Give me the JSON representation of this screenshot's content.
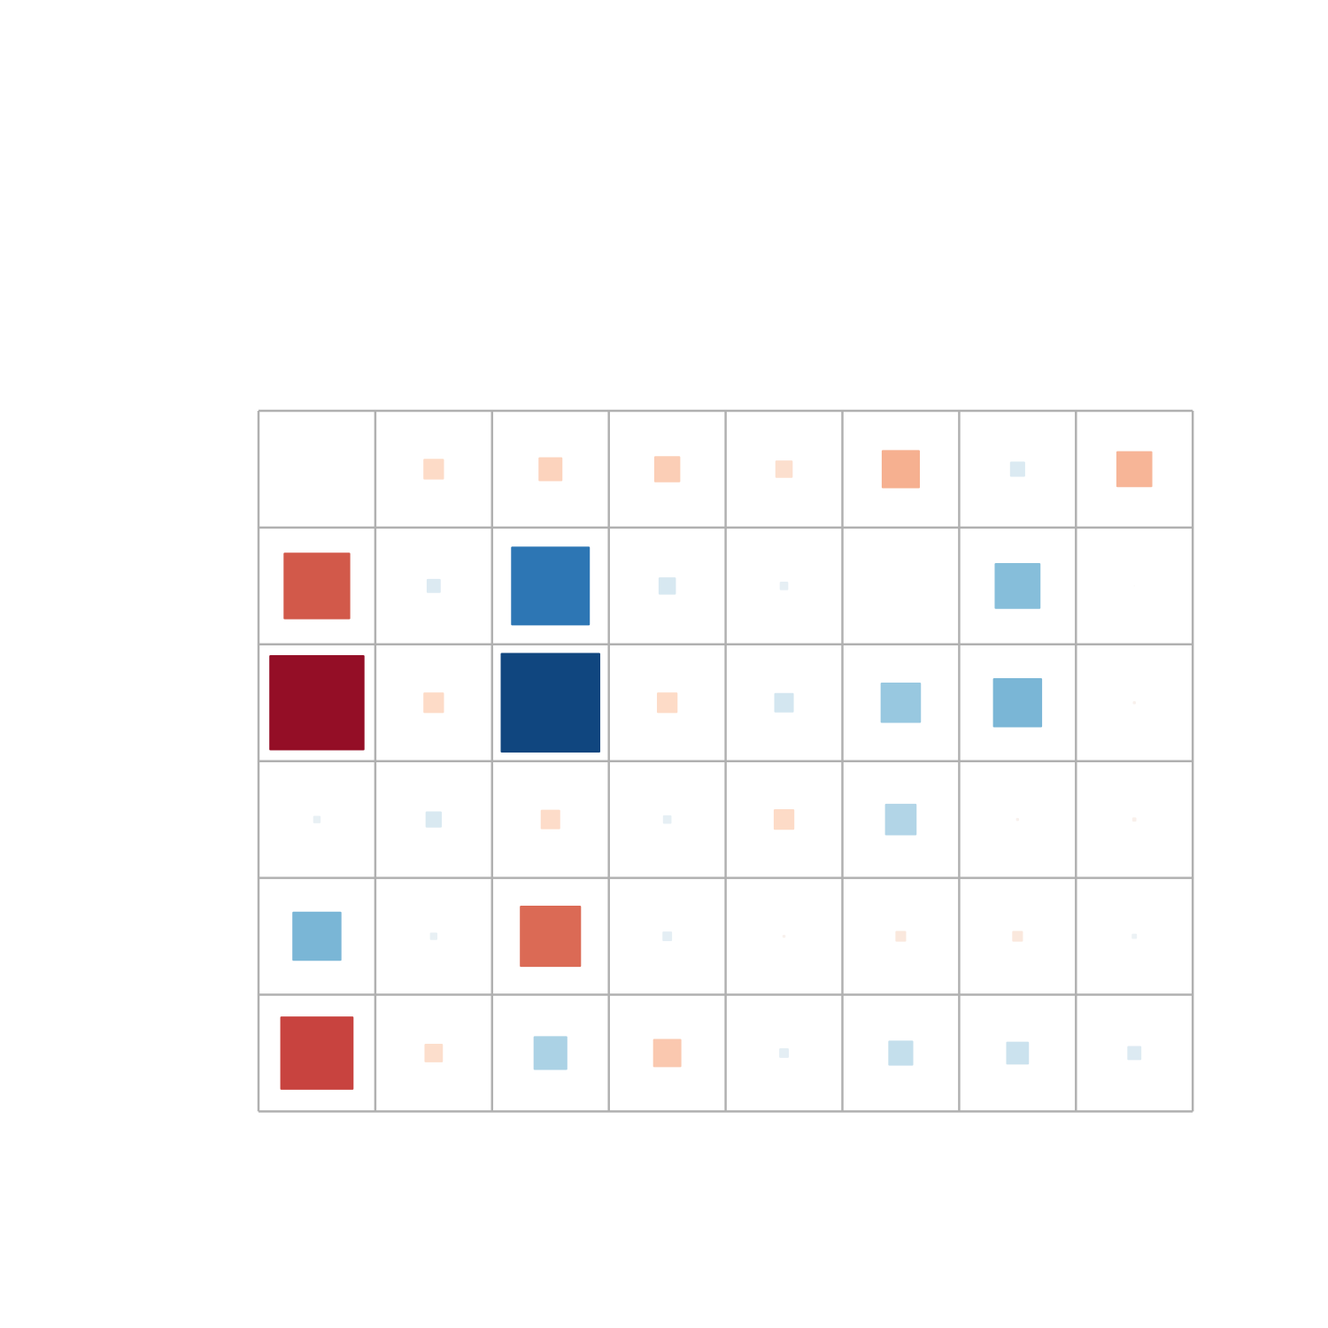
{
  "chart_data": {
    "type": "heatmap",
    "subtype": "correlation-square-size",
    "title": "",
    "xlabel": "",
    "ylabel": "",
    "rows": 6,
    "cols": 8,
    "value_range": [
      -1,
      1
    ],
    "size_encodes": "absolute value",
    "color_scale": {
      "negative": "#053061",
      "neutral": "#f7f7f7",
      "positive": "#67001f",
      "stops": [
        "#053061",
        "#2166ac",
        "#4393c3",
        "#92c5de",
        "#d1e5f0",
        "#f7f7f7",
        "#fddbc7",
        "#f4a582",
        "#d6604d",
        "#b2182b",
        "#67001f"
      ]
    },
    "grid": true,
    "grid_color": "#b0b0b0",
    "values": [
      [
        0.0,
        0.2,
        0.23,
        0.25,
        0.17,
        0.36,
        -0.15,
        0.34
      ],
      [
        0.62,
        -0.14,
        -0.73,
        -0.17,
        -0.09,
        0.0,
        -0.43,
        0.02
      ],
      [
        0.88,
        0.2,
        -0.92,
        0.2,
        -0.19,
        -0.38,
        -0.46,
        0.04
      ],
      [
        -0.08,
        -0.16,
        0.19,
        -0.09,
        0.2,
        -0.3,
        0.04,
        0.05
      ],
      [
        -0.46,
        -0.08,
        0.57,
        -0.1,
        0.04,
        0.11,
        0.11,
        -0.06
      ],
      [
        0.68,
        0.18,
        -0.32,
        0.27,
        -0.1,
        -0.24,
        -0.22,
        -0.14
      ]
    ]
  }
}
